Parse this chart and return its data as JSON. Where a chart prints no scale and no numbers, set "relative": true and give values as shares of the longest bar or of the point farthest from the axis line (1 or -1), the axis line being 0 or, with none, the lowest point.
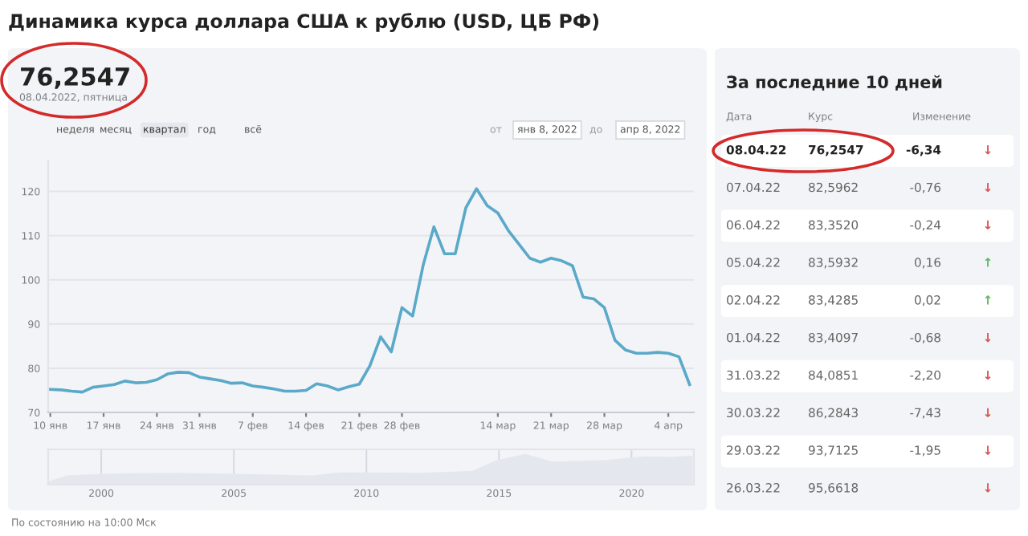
{
  "chart_data": [
    {
      "type": "line",
      "title": "Динамика курса доллара США к рублю (USD, ЦБ РФ)",
      "categories": [
        "10 янв",
        null,
        null,
        null,
        null,
        "17 янв",
        null,
        null,
        null,
        null,
        "24 янв",
        null,
        null,
        null,
        "31 янв",
        null,
        null,
        null,
        null,
        "7 фев",
        null,
        null,
        null,
        null,
        "14 фев",
        null,
        null,
        null,
        null,
        "21 фев",
        null,
        null,
        null,
        "28 фев",
        null,
        null,
        null,
        null,
        null,
        null,
        null,
        null,
        "14 мар",
        null,
        null,
        null,
        null,
        "21 мар",
        null,
        null,
        null,
        null,
        "28 мар",
        null,
        null,
        null,
        null,
        null,
        "4 апр",
        null,
        null
      ],
      "series": [
        {
          "color": "#5aa9c9",
          "values": [
            75.2,
            75.1,
            74.8,
            74.6,
            75.7,
            76.0,
            76.3,
            77.1,
            76.7,
            76.8,
            77.4,
            78.7,
            79.1,
            79.0,
            78.0,
            77.6,
            77.2,
            76.6,
            76.7,
            76.0,
            75.7,
            75.3,
            74.8,
            74.8,
            75.0,
            76.5,
            76.0,
            75.1,
            75.8,
            76.4,
            80.6,
            87.1,
            83.7,
            93.7,
            91.8,
            103.4,
            112.0,
            105.9,
            105.9,
            116.3,
            120.6,
            116.8,
            115.1,
            111.1,
            108.0,
            104.9,
            104.0,
            104.9,
            104.3,
            103.2,
            96.1,
            95.7,
            93.7,
            86.3,
            84.1,
            83.4,
            83.4,
            83.6,
            83.4,
            82.6,
            76.3
          ]
        }
      ],
      "ylim": [
        70,
        127
      ],
      "yticks": [
        70,
        80,
        90,
        100,
        110,
        120
      ],
      "grid": "y",
      "legend": false,
      "marker": "none",
      "line_style": "solid",
      "annotations": [
        "76,2547",
        "08.04.2022, пятница",
        "неделя",
        "месяц",
        "квартал",
        "год",
        "всё",
        "от",
        "янв 8, 2022",
        "до",
        "апр 8, 2022",
        "По состоянию на 10:00 Мск"
      ]
    },
    {
      "type": "area",
      "relative": true,
      "tick_labels": "x",
      "grid": "x",
      "x": [
        1998,
        1998.7,
        1999.5,
        2001,
        2003,
        2005,
        2008,
        2009,
        2012,
        2014,
        2014.9,
        2016,
        2017,
        2019,
        2020.5,
        2021.5,
        2022.3
      ],
      "series": [
        {
          "color": "#e4e7ee",
          "values": [
            0.1,
            0.3,
            0.33,
            0.37,
            0.38,
            0.35,
            0.3,
            0.4,
            0.38,
            0.45,
            0.8,
            1.0,
            0.75,
            0.8,
            0.92,
            0.9,
            0.95
          ]
        }
      ],
      "xlim": [
        1998,
        2022.35
      ],
      "xticks": [
        2000,
        2005,
        2010,
        2015,
        2020
      ]
    },
    {
      "type": "other",
      "title": "За последние 10 дней",
      "annotations": [
        "Дата",
        "Курс",
        "Изменение",
        "08.04.22",
        "76,2547",
        "-6,34",
        "↓",
        "07.04.22",
        "82,5962",
        "-0,76",
        "↓",
        "06.04.22",
        "83,3520",
        "-0,24",
        "↓",
        "05.04.22",
        "83,5932",
        "0,16",
        "↑",
        "02.04.22",
        "83,4285",
        "0,02",
        "↑",
        "01.04.22",
        "83,4097",
        "-0,68",
        "↓",
        "31.03.22",
        "84,0851",
        "-2,20",
        "↓",
        "30.03.22",
        "86,2843",
        "-7,43",
        "↓",
        "29.03.22",
        "93,7125",
        "-1,95",
        "↓",
        "26.03.22",
        "95,6618",
        null,
        "↓"
      ],
      "colors": [
        "#d9534f",
        "#d9534f",
        "#d9534f",
        "#5cb85c",
        "#5cb85c",
        "#d9534f",
        "#d9534f",
        "#d9534f",
        "#d9534f",
        "#d9534f"
      ]
    }
  ]
}
